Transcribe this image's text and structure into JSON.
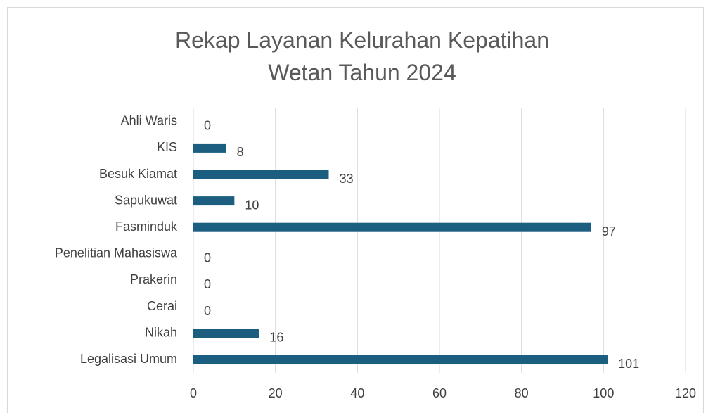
{
  "chart_data": {
    "type": "barh",
    "title": "Rekap Layanan Kelurahan Kepatihan Wetan Tahun 2024",
    "categories": [
      "Ahli Waris",
      "KIS",
      "Besuk Kiamat",
      "Sapukuwat",
      "Fasminduk",
      "Penelitian Mahasiswa",
      "Prakerin",
      "Cerai",
      "Nikah",
      "Legalisasi Umum"
    ],
    "values": [
      0,
      8,
      33,
      10,
      97,
      0,
      0,
      0,
      16,
      101
    ],
    "color": "#1b5e80",
    "xlim": [
      0,
      120
    ],
    "xticks": [
      0,
      20,
      40,
      60,
      80,
      100,
      120
    ],
    "grid": true
  }
}
